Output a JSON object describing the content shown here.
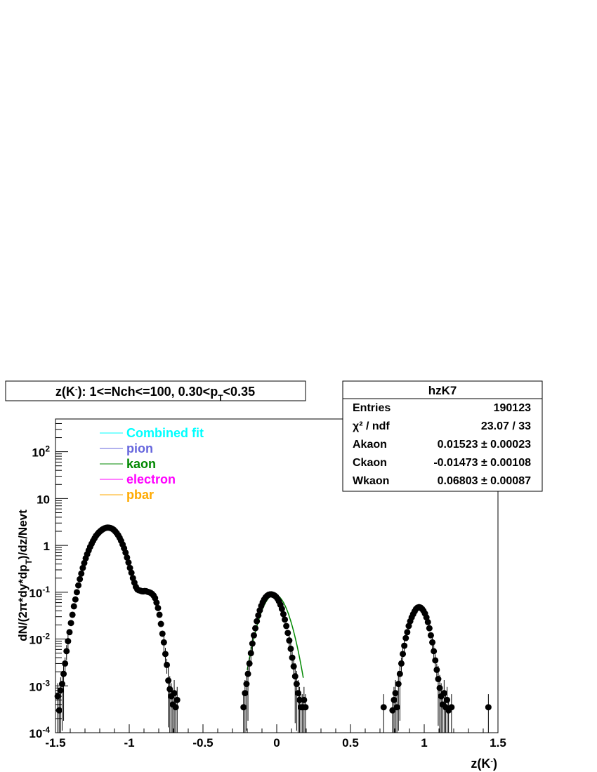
{
  "chart_data": {
    "type": "scatter",
    "title": "z(K⁻): 1<=Nch<=100, 0.30<pₜ<0.35",
    "title_parts": {
      "main": "z(K",
      "sup": "-",
      "mid": "): 1<=Nch<=100, 0.30<p",
      "sub": "T",
      "tail": "<0.35"
    },
    "xlabel": "z(K⁻)",
    "xlabel_parts": {
      "main": "z(K",
      "sup": "-",
      "tail": ")"
    },
    "ylabel": "dN/(2π*dy*dpₜ)/dz/Nevt",
    "xlim": [
      -1.5,
      1.5
    ],
    "ylim": [
      0.0001,
      500
    ],
    "yscale": "log",
    "x_ticks": [
      "-1.5",
      "-1",
      "-0.5",
      "0",
      "0.5",
      "1",
      "1.5"
    ],
    "x_tick_values": [
      -1.5,
      -1,
      -0.5,
      0,
      0.5,
      1,
      1.5
    ],
    "y_ticks": [
      {
        "value": 0.0001,
        "base": "10",
        "exp": "-4"
      },
      {
        "value": 0.001,
        "base": "10",
        "exp": "-3"
      },
      {
        "value": 0.01,
        "base": "10",
        "exp": "-2"
      },
      {
        "value": 0.1,
        "base": "10",
        "exp": "-1"
      },
      {
        "value": 1,
        "base": "1",
        "exp": ""
      },
      {
        "value": 10,
        "base": "10",
        "exp": ""
      },
      {
        "value": 100,
        "base": "10",
        "exp": "2"
      }
    ],
    "legend": {
      "position": "top-left",
      "entries": [
        {
          "label": "Combined fit",
          "color": "#00ffff"
        },
        {
          "label": "pion",
          "color": "#6666dd"
        },
        {
          "label": "kaon",
          "color": "#008800"
        },
        {
          "label": "electron",
          "color": "#ff00ff"
        },
        {
          "label": "pbar",
          "color": "#ffaa00"
        }
      ]
    },
    "stats_box": {
      "title": "hzK7",
      "rows": [
        {
          "label": "Entries",
          "value": "190123"
        },
        {
          "label": "χ² / ndf",
          "value": "23.07 / 33"
        },
        {
          "label": "Akaon",
          "value": "0.01523 ± 0.00023"
        },
        {
          "label": "Ckaon",
          "value": "-0.01473 ± 0.00108"
        },
        {
          "label": "Wkaon",
          "value": "0.06803 ± 0.00087"
        }
      ]
    },
    "fit": {
      "name": "kaon",
      "color": "#008800",
      "A": 0.01523,
      "C": -0.01473,
      "W": 0.06803,
      "range": [
        -0.2,
        0.18
      ]
    },
    "series": [
      {
        "name": "data",
        "points": [
          [
            -1.485,
            0.0006
          ],
          [
            -1.475,
            0.0003
          ],
          [
            -1.465,
            0.0008
          ],
          [
            -1.455,
            0.0011
          ],
          [
            -1.445,
            0.0018
          ],
          [
            -1.435,
            0.003
          ],
          [
            -1.425,
            0.0055
          ],
          [
            -1.415,
            0.009
          ],
          [
            -1.405,
            0.014
          ],
          [
            -1.395,
            0.022
          ],
          [
            -1.385,
            0.033
          ],
          [
            -1.375,
            0.05
          ],
          [
            -1.365,
            0.07
          ],
          [
            -1.355,
            0.1
          ],
          [
            -1.345,
            0.14
          ],
          [
            -1.335,
            0.19
          ],
          [
            -1.325,
            0.25
          ],
          [
            -1.315,
            0.33
          ],
          [
            -1.305,
            0.42
          ],
          [
            -1.295,
            0.53
          ],
          [
            -1.285,
            0.65
          ],
          [
            -1.275,
            0.78
          ],
          [
            -1.265,
            0.93
          ],
          [
            -1.255,
            1.08
          ],
          [
            -1.245,
            1.25
          ],
          [
            -1.235,
            1.42
          ],
          [
            -1.225,
            1.6
          ],
          [
            -1.215,
            1.75
          ],
          [
            -1.205,
            1.9
          ],
          [
            -1.195,
            2.03
          ],
          [
            -1.185,
            2.15
          ],
          [
            -1.175,
            2.25
          ],
          [
            -1.165,
            2.33
          ],
          [
            -1.155,
            2.38
          ],
          [
            -1.145,
            2.4
          ],
          [
            -1.135,
            2.38
          ],
          [
            -1.125,
            2.34
          ],
          [
            -1.115,
            2.26
          ],
          [
            -1.105,
            2.15
          ],
          [
            -1.095,
            2.0
          ],
          [
            -1.085,
            1.83
          ],
          [
            -1.075,
            1.65
          ],
          [
            -1.065,
            1.45
          ],
          [
            -1.055,
            1.25
          ],
          [
            -1.045,
            1.05
          ],
          [
            -1.035,
            0.87
          ],
          [
            -1.025,
            0.7
          ],
          [
            -1.015,
            0.55
          ],
          [
            -1.005,
            0.43
          ],
          [
            -0.995,
            0.33
          ],
          [
            -0.985,
            0.26
          ],
          [
            -0.975,
            0.2
          ],
          [
            -0.965,
            0.16
          ],
          [
            -0.955,
            0.13
          ],
          [
            -0.945,
            0.115
          ],
          [
            -0.935,
            0.11
          ],
          [
            -0.925,
            0.108
          ],
          [
            -0.915,
            0.105
          ],
          [
            -0.905,
            0.104
          ],
          [
            -0.895,
            0.106
          ],
          [
            -0.885,
            0.105
          ],
          [
            -0.875,
            0.102
          ],
          [
            -0.865,
            0.1
          ],
          [
            -0.855,
            0.097
          ],
          [
            -0.845,
            0.092
          ],
          [
            -0.835,
            0.085
          ],
          [
            -0.825,
            0.075
          ],
          [
            -0.815,
            0.06
          ],
          [
            -0.805,
            0.046
          ],
          [
            -0.795,
            0.033
          ],
          [
            -0.785,
            0.021
          ],
          [
            -0.775,
            0.013
          ],
          [
            -0.765,
            0.0085
          ],
          [
            -0.755,
            0.0048
          ],
          [
            -0.745,
            0.0028
          ],
          [
            -0.735,
            0.0013
          ],
          [
            -0.725,
            0.00085
          ],
          [
            -0.715,
            0.0006
          ],
          [
            -0.705,
            0.0004
          ],
          [
            -0.695,
            0.0007
          ],
          [
            -0.685,
            0.00035
          ],
          [
            -0.675,
            0.0005
          ],
          [
            -0.225,
            0.00035
          ],
          [
            -0.215,
            0.0007
          ],
          [
            -0.205,
            0.0011
          ],
          [
            -0.195,
            0.0018
          ],
          [
            -0.185,
            0.003
          ],
          [
            -0.175,
            0.005
          ],
          [
            -0.165,
            0.008
          ],
          [
            -0.155,
            0.012
          ],
          [
            -0.145,
            0.017
          ],
          [
            -0.135,
            0.024
          ],
          [
            -0.125,
            0.032
          ],
          [
            -0.115,
            0.041
          ],
          [
            -0.105,
            0.051
          ],
          [
            -0.095,
            0.061
          ],
          [
            -0.085,
            0.07
          ],
          [
            -0.075,
            0.078
          ],
          [
            -0.065,
            0.084
          ],
          [
            -0.055,
            0.088
          ],
          [
            -0.045,
            0.09
          ],
          [
            -0.035,
            0.09
          ],
          [
            -0.025,
            0.088
          ],
          [
            -0.015,
            0.085
          ],
          [
            -0.005,
            0.08
          ],
          [
            0.005,
            0.073
          ],
          [
            0.015,
            0.064
          ],
          [
            0.025,
            0.054
          ],
          [
            0.035,
            0.044
          ],
          [
            0.045,
            0.034
          ],
          [
            0.055,
            0.026
          ],
          [
            0.065,
            0.019
          ],
          [
            0.075,
            0.0135
          ],
          [
            0.085,
            0.0093
          ],
          [
            0.095,
            0.0062
          ],
          [
            0.105,
            0.004
          ],
          [
            0.115,
            0.0026
          ],
          [
            0.125,
            0.0016
          ],
          [
            0.135,
            0.0011
          ],
          [
            0.145,
            0.0007
          ],
          [
            0.155,
            0.0005
          ],
          [
            0.165,
            0.00035
          ],
          [
            0.175,
            0.00035
          ],
          [
            0.185,
            0.0005
          ],
          [
            0.195,
            0.00035
          ],
          [
            0.725,
            0.00035
          ],
          [
            0.785,
            0.0003
          ],
          [
            0.795,
            0.0005
          ],
          [
            0.805,
            0.0007
          ],
          [
            0.815,
            0.00035
          ],
          [
            0.825,
            0.0011
          ],
          [
            0.835,
            0.0018
          ],
          [
            0.845,
            0.003
          ],
          [
            0.855,
            0.0048
          ],
          [
            0.865,
            0.0072
          ],
          [
            0.875,
            0.0105
          ],
          [
            0.885,
            0.014
          ],
          [
            0.895,
            0.019
          ],
          [
            0.905,
            0.024
          ],
          [
            0.915,
            0.029
          ],
          [
            0.925,
            0.034
          ],
          [
            0.935,
            0.039
          ],
          [
            0.945,
            0.044
          ],
          [
            0.955,
            0.047
          ],
          [
            0.965,
            0.048
          ],
          [
            0.975,
            0.047
          ],
          [
            0.985,
            0.044
          ],
          [
            0.995,
            0.04
          ],
          [
            1.005,
            0.035
          ],
          [
            1.015,
            0.029
          ],
          [
            1.025,
            0.023
          ],
          [
            1.035,
            0.017
          ],
          [
            1.045,
            0.012
          ],
          [
            1.055,
            0.0085
          ],
          [
            1.065,
            0.0055
          ],
          [
            1.075,
            0.0035
          ],
          [
            1.085,
            0.0022
          ],
          [
            1.095,
            0.0014
          ],
          [
            1.105,
            0.0009
          ],
          [
            1.115,
            0.0006
          ],
          [
            1.125,
            0.0004
          ],
          [
            1.135,
            0.0007
          ],
          [
            1.145,
            0.00035
          ],
          [
            1.155,
            0.0005
          ],
          [
            1.165,
            0.0003
          ],
          [
            1.185,
            0.00035
          ],
          [
            1.435,
            0.00035
          ]
        ]
      }
    ]
  }
}
